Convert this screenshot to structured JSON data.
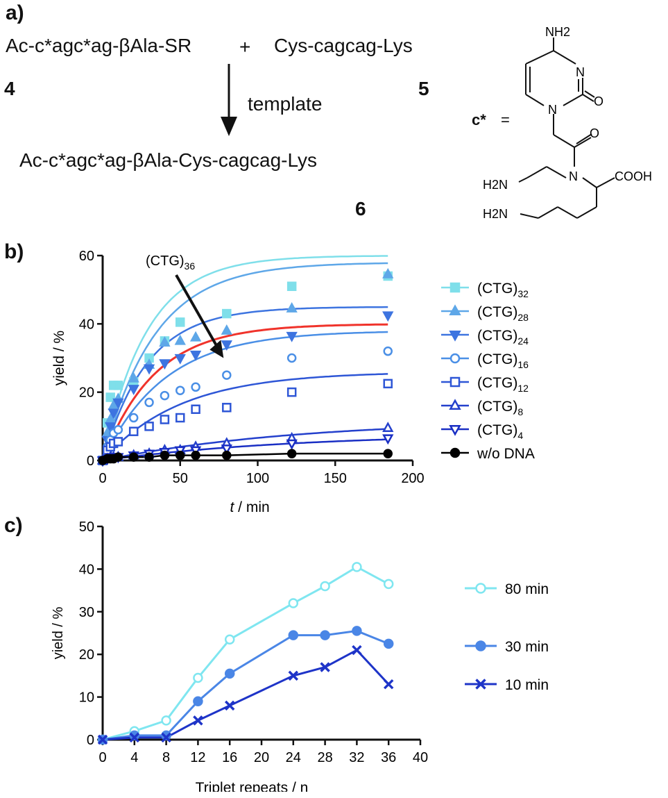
{
  "scheme": {
    "panel_label": "a)",
    "reactant_a": "Ac-c*agc*ag-βAla-SR",
    "plus": "+",
    "reactant_b": "Cys-cagcag-Lys",
    "num_a": "4",
    "num_b": "5",
    "arrow_label": "template",
    "product": "Ac-c*agc*ag-βAla-Cys-cagcag-Lys",
    "num_product": "6",
    "cstar_label": "c*",
    "cstar_eq": "=",
    "struct_nh2_top": "NH2",
    "struct_n_ring": "N",
    "struct_o": "O",
    "struct_n_ring2": "N",
    "struct_o2": "O",
    "struct_n_amide": "N",
    "struct_cooh": "COOH",
    "struct_h2n_a": "H2N",
    "struct_h2n_b": "H2N"
  },
  "chart_data": [
    {
      "panel_label": "b)",
      "type": "scatter",
      "xlabel_var": "t",
      "xlabel_unit": " / min",
      "ylabel": "yield / %",
      "xlim": [
        0,
        200
      ],
      "ylim": [
        0,
        60
      ],
      "xticks": [
        0,
        50,
        100,
        150,
        200
      ],
      "yticks": [
        0,
        20,
        40,
        60
      ],
      "annotation": {
        "text": "(CTG)",
        "sub": "36",
        "target": [
          78,
          30
        ]
      },
      "x": [
        0,
        3,
        5,
        7,
        10,
        20,
        30,
        40,
        50,
        60,
        80,
        122,
        184
      ],
      "series": [
        {
          "name": "(CTG)",
          "sub": "32",
          "color": "#7fdfea",
          "marker": "square-filled",
          "values": [
            0,
            11,
            18.5,
            22,
            22,
            23,
            30,
            35,
            40.5,
            null,
            43,
            51,
            54
          ],
          "fit": {
            "ymax": 60,
            "k": 0.035
          }
        },
        {
          "name": "(CTG)",
          "sub": "28",
          "color": "#5ea7e8",
          "marker": "triangle-up-filled",
          "values": [
            0,
            8,
            12,
            16,
            18,
            24,
            28,
            34.5,
            35,
            36,
            38,
            44.5,
            54.5
          ],
          "fit": {
            "ymax": 58,
            "k": 0.03
          }
        },
        {
          "name": "(CTG)",
          "sub": "24",
          "color": "#3d74e0",
          "marker": "triangle-down-filled",
          "values": [
            0,
            6,
            10,
            14,
            17,
            21,
            27,
            28.5,
            30,
            31,
            34,
            36.5,
            42.5
          ],
          "fit": {
            "ymax": 45,
            "k": 0.035
          }
        },
        {
          "name": "(CTG)",
          "sub": "16",
          "color": "#4a8fe6",
          "marker": "circle-open",
          "values": [
            0,
            4,
            6,
            8,
            9,
            12.5,
            17,
            19,
            20.5,
            21.5,
            25,
            30,
            32
          ],
          "fit": {
            "ymax": 38,
            "k": 0.025
          }
        },
        {
          "name": "(CTG)",
          "sub": "12",
          "color": "#2e56d6",
          "marker": "square-open",
          "values": [
            0,
            3,
            4,
            5,
            5.5,
            8.5,
            10,
            12,
            12.5,
            15,
            15.5,
            20,
            22.5
          ],
          "fit": {
            "ymax": 26,
            "k": 0.02
          }
        },
        {
          "name": "(CTG)",
          "sub": "8",
          "color": "#2440cc",
          "marker": "triangle-up-open",
          "values": [
            0,
            0.5,
            1,
            1,
            1,
            1.5,
            2,
            3,
            3,
            4,
            5,
            6.5,
            9.5
          ],
          "fit": {
            "ymax": 12,
            "k": 0.008
          }
        },
        {
          "name": "(CTG)",
          "sub": "4",
          "color": "#1a2fc4",
          "marker": "triangle-down-open",
          "values": [
            0,
            0.5,
            1,
            1,
            1,
            1.5,
            2,
            2.5,
            3,
            3,
            3.5,
            5,
            6.5
          ],
          "fit": {
            "ymax": 8,
            "k": 0.008
          }
        },
        {
          "name": "w/o DNA",
          "sub": "",
          "color": "#000000",
          "marker": "circle-filled",
          "values": [
            0,
            0.5,
            0.5,
            0.5,
            1,
            1,
            1,
            1.5,
            1.5,
            1.5,
            1.5,
            2,
            2
          ],
          "fit": null
        }
      ],
      "extra_fit": {
        "color": "#f0332b",
        "ymax": 40,
        "k": 0.03
      }
    },
    {
      "panel_label": "c)",
      "type": "line",
      "xlabel": "Triplet repeats / n",
      "ylabel": "yield / %",
      "xlim": [
        0,
        40
      ],
      "ylim": [
        0,
        50
      ],
      "xticks": [
        0,
        4,
        8,
        12,
        16,
        20,
        24,
        28,
        32,
        36,
        40
      ],
      "yticks": [
        0,
        10,
        20,
        30,
        40,
        50
      ],
      "x": [
        0,
        4,
        8,
        12,
        16,
        24,
        28,
        32,
        36
      ],
      "series": [
        {
          "name": "80 min",
          "color": "#7fe6f0",
          "marker": "circle-open",
          "values": [
            0,
            2,
            4.5,
            14.5,
            23.5,
            32,
            36,
            40.5,
            36.5
          ]
        },
        {
          "name": "30 min",
          "color": "#4a86e6",
          "marker": "circle-filled",
          "values": [
            0,
            1,
            1,
            9,
            15.5,
            24.5,
            24.5,
            25.5,
            22.5
          ]
        },
        {
          "name": "10 min",
          "color": "#1e34c8",
          "marker": "cross",
          "values": [
            0,
            0.5,
            0.5,
            4.5,
            8,
            15,
            17,
            21,
            13
          ]
        }
      ]
    }
  ]
}
